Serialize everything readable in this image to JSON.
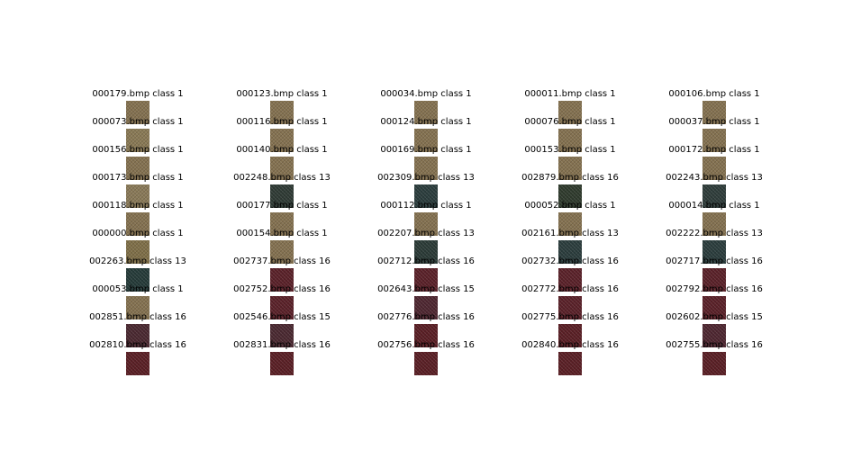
{
  "columns": [
    {
      "cells": [
        {
          "label": "000179.bmp class 1",
          "texture": "#857250"
        },
        {
          "label": "000073.bmp class 1",
          "texture": "#8a7a55"
        },
        {
          "label": "000156.bmp class 1",
          "texture": "#857250"
        },
        {
          "label": "000173.bmp class 1",
          "texture": "#8a7a58"
        },
        {
          "label": "000118.bmp class 1",
          "texture": "#857250"
        },
        {
          "label": "000000.bmp class 1",
          "texture": "#807048"
        },
        {
          "label": "002263.bmp class 13",
          "texture": "#243a38"
        },
        {
          "label": "000053.bmp class 1",
          "texture": "#857250"
        },
        {
          "label": "002851.bmp class 16",
          "texture": "#4a2830"
        },
        {
          "label": "002810.bmp class 16",
          "texture": "#5a1e24"
        }
      ]
    },
    {
      "cells": [
        {
          "label": "000123.bmp class 1",
          "texture": "#857250"
        },
        {
          "label": "000116.bmp class 1",
          "texture": "#857250"
        },
        {
          "label": "000140.bmp class 1",
          "texture": "#857250"
        },
        {
          "label": "002248.bmp class 13",
          "texture": "#2e3a34"
        },
        {
          "label": "000177.bmp class 1",
          "texture": "#857250"
        },
        {
          "label": "000154.bmp class 1",
          "texture": "#857250"
        },
        {
          "label": "002737.bmp class 16",
          "texture": "#5a2028"
        },
        {
          "label": "002752.bmp class 16",
          "texture": "#5a2028"
        },
        {
          "label": "002546.bmp class 15",
          "texture": "#4a2830"
        },
        {
          "label": "002831.bmp class 16",
          "texture": "#5a1e24"
        }
      ]
    },
    {
      "cells": [
        {
          "label": "000034.bmp class 1",
          "texture": "#857250"
        },
        {
          "label": "000124.bmp class 1",
          "texture": "#857250"
        },
        {
          "label": "000169.bmp class 1",
          "texture": "#857250"
        },
        {
          "label": "002309.bmp class 13",
          "texture": "#2a3c3c"
        },
        {
          "label": "000112.bmp class 1",
          "texture": "#857250"
        },
        {
          "label": "002207.bmp class 13",
          "texture": "#2a3a36"
        },
        {
          "label": "002712.bmp class 16",
          "texture": "#5a2028"
        },
        {
          "label": "002643.bmp class 15",
          "texture": "#4e2630"
        },
        {
          "label": "002776.bmp class 16",
          "texture": "#5a1e24"
        },
        {
          "label": "002756.bmp class 16",
          "texture": "#5a1e24"
        }
      ]
    },
    {
      "cells": [
        {
          "label": "000011.bmp class 1",
          "texture": "#857250"
        },
        {
          "label": "000076.bmp class 1",
          "texture": "#857250"
        },
        {
          "label": "000153.bmp class 1",
          "texture": "#857250"
        },
        {
          "label": "002879.bmp class 16",
          "texture": "#2e3a2c"
        },
        {
          "label": "000052.bmp class 1",
          "texture": "#857250"
        },
        {
          "label": "002161.bmp class 13",
          "texture": "#2a3c3c"
        },
        {
          "label": "002732.bmp class 16",
          "texture": "#5a2028"
        },
        {
          "label": "002772.bmp class 16",
          "texture": "#5a2028"
        },
        {
          "label": "002775.bmp class 16",
          "texture": "#5a1e24"
        },
        {
          "label": "002840.bmp class 16",
          "texture": "#5a1e24"
        }
      ]
    },
    {
      "cells": [
        {
          "label": "000106.bmp class 1",
          "texture": "#857250"
        },
        {
          "label": "000037.bmp class 1",
          "texture": "#857250"
        },
        {
          "label": "000172.bmp class 1",
          "texture": "#857250"
        },
        {
          "label": "002243.bmp class 13",
          "texture": "#2e3c3a"
        },
        {
          "label": "000014.bmp class 1",
          "texture": "#857250"
        },
        {
          "label": "002222.bmp class 13",
          "texture": "#2a3c3c"
        },
        {
          "label": "002717.bmp class 16",
          "texture": "#5a2028"
        },
        {
          "label": "002792.bmp class 16",
          "texture": "#5a2028"
        },
        {
          "label": "002602.bmp class 15",
          "texture": "#4e2630"
        },
        {
          "label": "002755.bmp class 16",
          "texture": "#5a1e24"
        }
      ]
    }
  ]
}
